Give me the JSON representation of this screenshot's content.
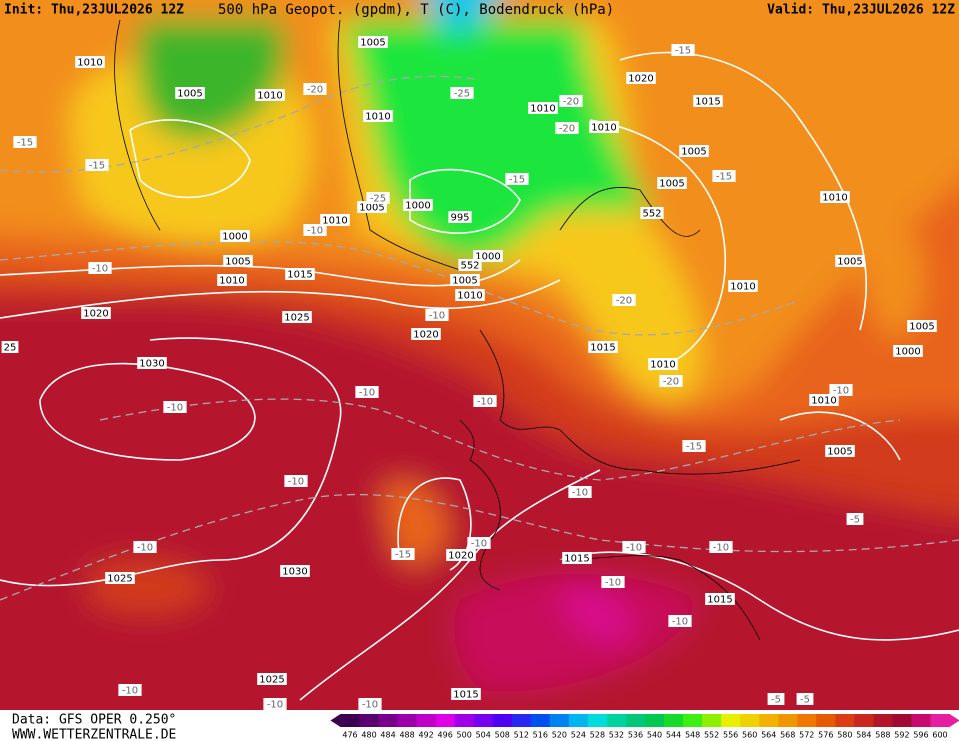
{
  "header": {
    "init": "Init: Thu,23JUL2026 12Z",
    "title": "500 hPa Geopot. (gpdm), T (C), Bodendruck (hPa)",
    "valid": "Valid: Thu,23JUL2026 12Z"
  },
  "map": {
    "labels": [
      "1010",
      "1005",
      "1010",
      "1005",
      "1010",
      "1020",
      "1015",
      "1010",
      "1010",
      "1005",
      "1005",
      "1010",
      "1010",
      "1005",
      "1000",
      "995",
      "1000",
      "1005",
      "1010",
      "1015",
      "1000",
      "1005",
      "1010",
      "1020",
      "1025",
      "1020",
      "1005",
      "1010",
      "1005",
      "1000",
      "1015",
      "1010",
      "1030",
      "1010",
      "1005",
      "1020",
      "1015",
      "1030",
      "1025",
      "1015",
      "1025",
      "1015",
      "552",
      "552",
      "-15",
      "-20",
      "-25",
      "-20",
      "-20",
      "-15",
      "-15",
      "-15",
      "-15",
      "-25",
      "-10",
      "-10",
      "-10",
      "-20",
      "-20",
      "-10",
      "-10",
      "-10",
      "-10",
      "-15",
      "-10",
      "-10",
      "-10",
      "-10",
      "-10",
      "-10",
      "-15",
      "-10",
      "-5",
      "-10",
      "-10",
      "-5",
      "-5",
      "-10",
      "-10",
      "25"
    ]
  },
  "footer": {
    "source": "Data: GFS OPER 0.250°",
    "site": "WWW.WETTERZENTRALE.DE",
    "colorbar": [
      476,
      480,
      484,
      488,
      492,
      496,
      500,
      504,
      508,
      512,
      516,
      520,
      524,
      528,
      532,
      536,
      540,
      544,
      548,
      552,
      556,
      560,
      564,
      568,
      572,
      576,
      580,
      584,
      588,
      592,
      596,
      600
    ]
  }
}
